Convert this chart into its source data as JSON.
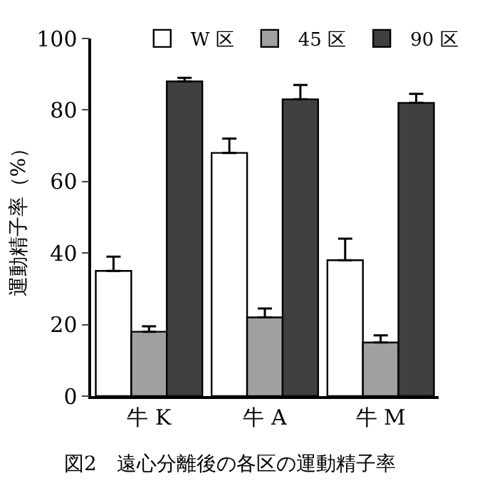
{
  "chart_data": {
    "type": "bar",
    "ylabel": "運動精子率（%）",
    "categories": [
      "牛 K",
      "牛 A",
      "牛 M"
    ],
    "series": [
      {
        "name": "W 区",
        "color": "#ffffff",
        "values": [
          35,
          68,
          38
        ],
        "errors": [
          [
            35,
            39
          ],
          [
            68,
            72
          ],
          [
            38,
            44
          ]
        ]
      },
      {
        "name": "45 区",
        "color": "#a0a0a0",
        "values": [
          18,
          22,
          15
        ],
        "errors": [
          [
            18,
            19.5
          ],
          [
            22,
            24.5
          ],
          [
            15,
            17
          ]
        ]
      },
      {
        "name": "90 区",
        "color": "#404040",
        "values": [
          88,
          83,
          82
        ],
        "errors": [
          [
            88,
            89
          ],
          [
            83,
            87
          ],
          [
            82,
            84.5
          ]
        ]
      }
    ],
    "ylim": [
      0,
      100
    ],
    "yticks": [
      0,
      20,
      40,
      60,
      80,
      100
    ],
    "legend": "top",
    "annotations": [
      "図2　遠心分離後の各区の運動精子率"
    ]
  }
}
